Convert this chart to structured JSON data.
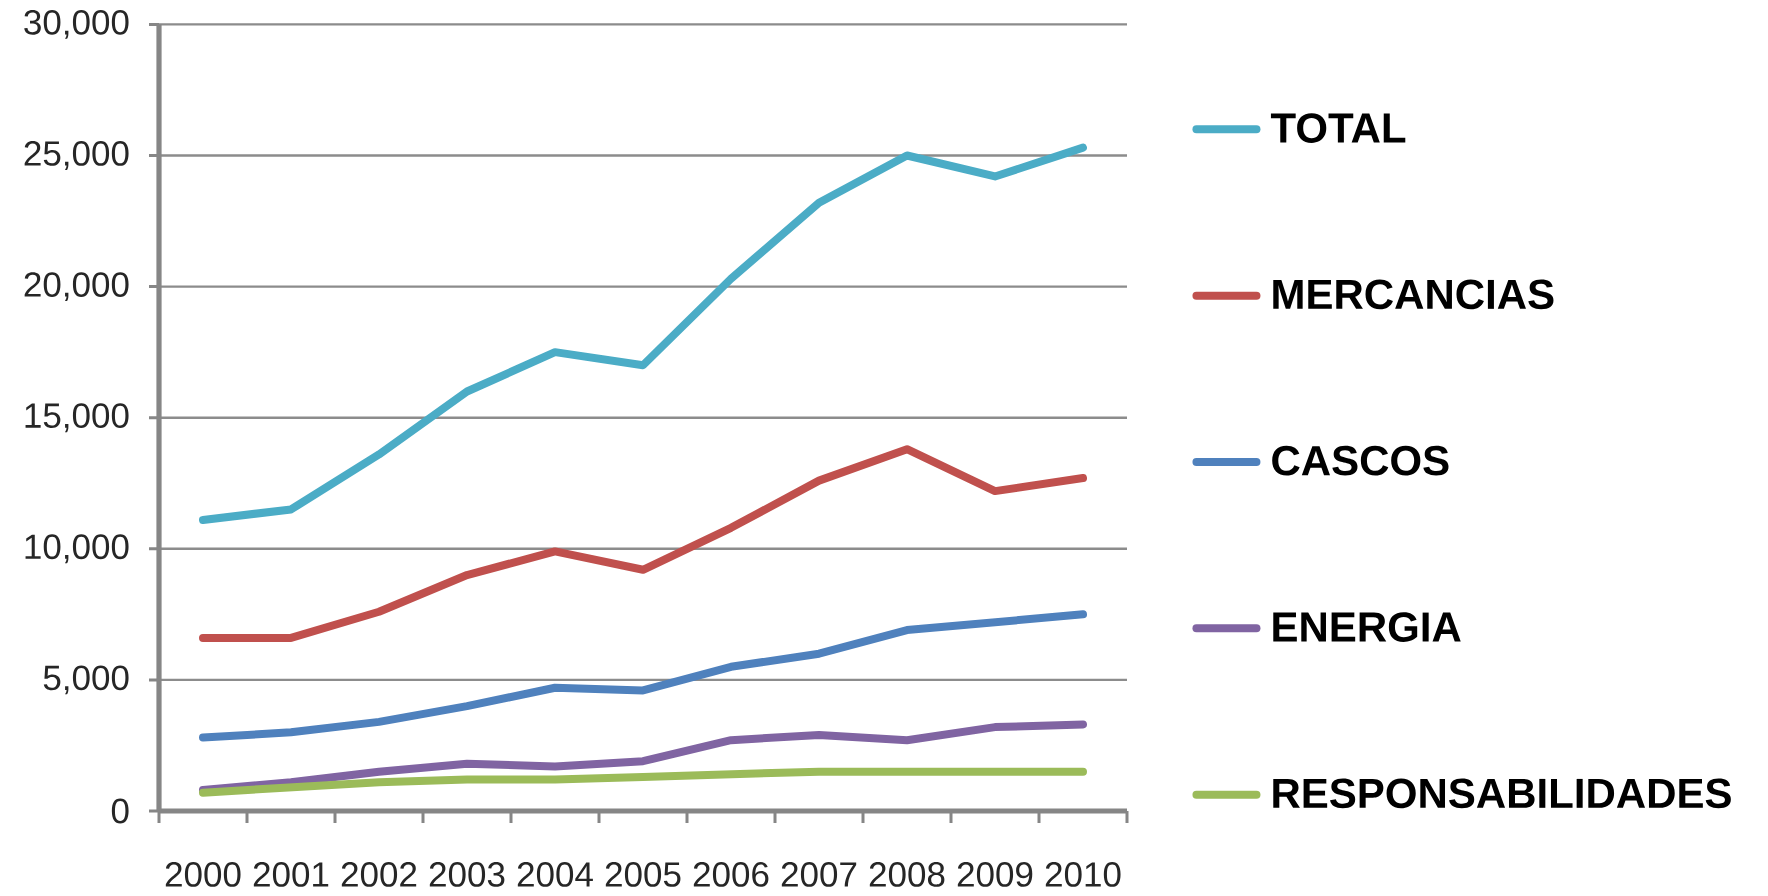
{
  "chart_data": {
    "type": "line",
    "categories": [
      "2000",
      "2001",
      "2002",
      "2003",
      "2004",
      "2005",
      "2006",
      "2007",
      "2008",
      "2009",
      "2010"
    ],
    "series": [
      {
        "name": "TOTAL",
        "color": "#4bacc6",
        "values": [
          11100,
          11500,
          13600,
          16000,
          17500,
          17000,
          20300,
          23200,
          25000,
          24200,
          25300
        ]
      },
      {
        "name": "MERCANCIAS",
        "color": "#c0504d",
        "values": [
          6600,
          6600,
          7600,
          9000,
          9900,
          9200,
          10800,
          12600,
          13800,
          12200,
          12700
        ]
      },
      {
        "name": "CASCOS",
        "color": "#4f81bd",
        "values": [
          2800,
          3000,
          3400,
          4000,
          4700,
          4600,
          5500,
          6000,
          6900,
          7200,
          7500
        ]
      },
      {
        "name": "ENERGIA",
        "color": "#8064a2",
        "values": [
          800,
          1100,
          1500,
          1800,
          1700,
          1900,
          2700,
          2900,
          2700,
          3200,
          3300
        ]
      },
      {
        "name": "RESPONSABILIDADES",
        "color": "#9bbb59",
        "values": [
          700,
          900,
          1100,
          1200,
          1200,
          1300,
          1400,
          1500,
          1500,
          1500,
          1500
        ]
      }
    ],
    "ylim": [
      0,
      30000
    ],
    "yticks": [
      0,
      {
        "value": 5000,
        "label": "5,000"
      },
      {
        "value": 10000,
        "label": "10,000"
      },
      {
        "value": 15000,
        "label": "15,000"
      },
      {
        "value": 20000,
        "label": "20,000"
      },
      {
        "value": 25000,
        "label": "25,000"
      },
      {
        "value": 30000,
        "label": "30,000"
      }
    ],
    "grid": "y",
    "legend": "right",
    "marker": "none",
    "line_style": "solid"
  }
}
